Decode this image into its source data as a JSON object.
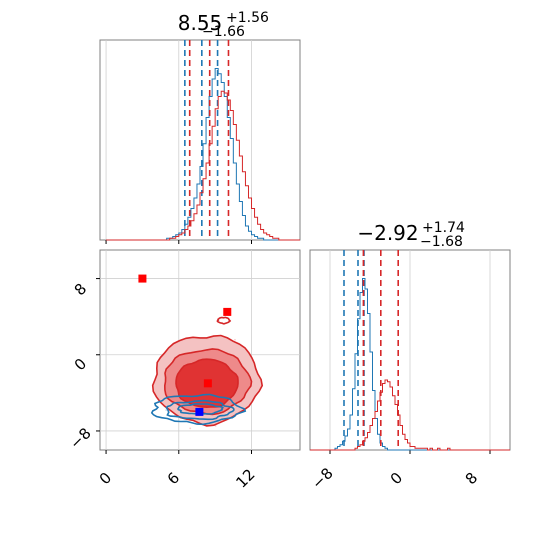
{
  "chart_data": [
    {
      "panel": "marginal-x",
      "type": "histogram",
      "title": {
        "median": "8.55",
        "plus": "+1.56",
        "minus": "−1.66"
      },
      "xlim": [
        -0.5,
        16
      ],
      "series": [
        {
          "color": "#1f77b4",
          "quantiles": [
            6.5,
            7.9,
            9.2
          ],
          "bins_from": 0,
          "bin_width": 0.25,
          "counts": [
            0,
            0,
            0,
            0,
            0,
            0,
            0,
            0,
            0,
            0,
            0,
            0,
            0,
            0,
            0,
            0,
            0,
            0,
            0,
            0,
            1,
            1,
            2,
            3,
            4,
            6,
            9,
            13,
            18,
            24,
            32,
            42,
            55,
            70,
            82,
            92,
            98,
            95,
            90,
            82,
            70,
            58,
            44,
            32,
            22,
            14,
            8,
            5,
            3,
            2,
            1,
            1,
            0,
            0,
            0,
            0,
            0,
            0,
            0,
            0,
            0,
            0,
            0,
            0
          ]
        },
        {
          "color": "#d62728",
          "quantiles": [
            6.9,
            8.55,
            10.1
          ],
          "bins_from": 0,
          "bin_width": 0.25,
          "counts": [
            0,
            0,
            0,
            0,
            0,
            0,
            0,
            0,
            0,
            0,
            0,
            0,
            0,
            0,
            0,
            0,
            0,
            0,
            0,
            0,
            0,
            1,
            1,
            2,
            3,
            4,
            6,
            8,
            11,
            15,
            20,
            27,
            35,
            44,
            55,
            65,
            75,
            82,
            85,
            84,
            80,
            74,
            66,
            57,
            48,
            39,
            31,
            24,
            18,
            13,
            9,
            6,
            4,
            3,
            2,
            1,
            1,
            0,
            0,
            0,
            0,
            0,
            0,
            0
          ]
        }
      ],
      "xticks": [
        0,
        6,
        12
      ]
    },
    {
      "panel": "marginal-y",
      "type": "histogram",
      "title": {
        "median": "−2.92",
        "plus": "+1.74",
        "minus": "−1.68"
      },
      "xlim": [
        -10,
        10
      ],
      "series": [
        {
          "color": "#1f77b4",
          "quantiles": [
            -6.6,
            -5.2,
            -4.6
          ],
          "counts": [
            0,
            0,
            0,
            0,
            0,
            0,
            0,
            0,
            0,
            0,
            1,
            2,
            3,
            5,
            8,
            12,
            20,
            35,
            55,
            75,
            90,
            98,
            92,
            78,
            56,
            34,
            18,
            9,
            4,
            2,
            1,
            0,
            0,
            0,
            0,
            0,
            0,
            0,
            0,
            0,
            0,
            0,
            0,
            0,
            0,
            0,
            0,
            0,
            0,
            0,
            0,
            0,
            0,
            0,
            0,
            0,
            0,
            0,
            0,
            0,
            0,
            0,
            0,
            0,
            0,
            0,
            0,
            0,
            0,
            0,
            0,
            0,
            0,
            0,
            0,
            0,
            0,
            0,
            0,
            0
          ]
        },
        {
          "color": "#d62728",
          "quantiles": [
            -4.66,
            -2.92,
            -1.18
          ],
          "counts": [
            0,
            0,
            0,
            0,
            0,
            0,
            0,
            0,
            0,
            0,
            0,
            0,
            0,
            0,
            0,
            0,
            0,
            0,
            1,
            2,
            3,
            5,
            7,
            10,
            14,
            18,
            22,
            28,
            33,
            38,
            40,
            39,
            36,
            31,
            26,
            20,
            14,
            9,
            6,
            4,
            2,
            2,
            1,
            1,
            1,
            1,
            1,
            0,
            1,
            0,
            0,
            1,
            0,
            0,
            0,
            1,
            0,
            0,
            0,
            0,
            0,
            0,
            0,
            0,
            0,
            0,
            0,
            0,
            0,
            0,
            0,
            0,
            0,
            0,
            0,
            0,
            0,
            0,
            0,
            0
          ]
        }
      ],
      "xticks": [
        -8,
        0,
        8
      ]
    },
    {
      "panel": "joint",
      "type": "scatter",
      "xlim": [
        -0.5,
        16
      ],
      "ylim": [
        -10,
        11
      ],
      "xticks": [
        0,
        6,
        12
      ],
      "yticks": [
        -8,
        0,
        8
      ],
      "markers": [
        {
          "x": 3,
          "y": 8,
          "color": "#ff0000"
        },
        {
          "x": 10,
          "y": 4.5,
          "color": "#ff0000"
        },
        {
          "x": 8.4,
          "y": -3,
          "color": "#ff0000"
        },
        {
          "x": 7.7,
          "y": -6,
          "color": "#0000ff"
        }
      ],
      "red_contour_center": [
        8.3,
        -2.6
      ],
      "blue_contour_center": [
        7.5,
        -5.7
      ]
    }
  ],
  "tick_labels": {
    "x_joint": [
      "0",
      "6",
      "12"
    ],
    "y_joint": [
      "−8",
      "0",
      "8"
    ],
    "x_marg": [
      "−8",
      "0",
      "8"
    ]
  }
}
